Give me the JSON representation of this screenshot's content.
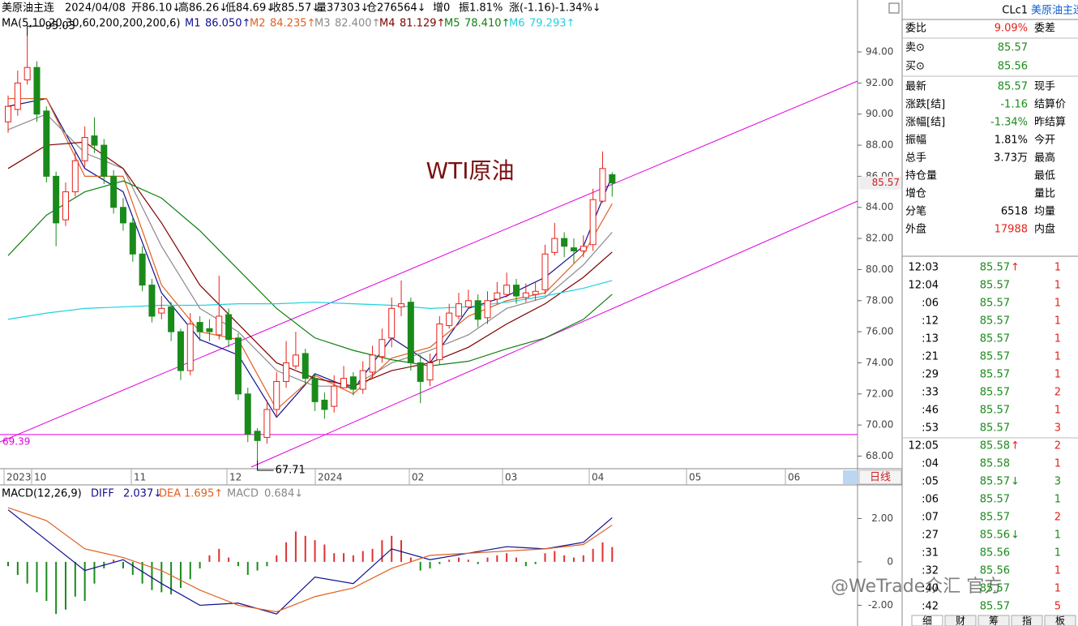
{
  "header": {
    "info": [
      "美原油主连",
      "2024/04/08",
      "开86.10↓",
      "高86.26↓",
      "低84.69↓",
      "收85.57↓",
      "量37303↓",
      "仓276564↓",
      "增0",
      "振1.81%",
      "涨(-1.16)-1.34%↓"
    ],
    "ma_title": "MA(5,10,20,30,60,200,200,200,6)"
  },
  "chart_data": [
    {
      "type": "candlestick",
      "title": "WTI原油",
      "open": [
        89.5,
        90.3,
        92.2,
        93,
        90.2,
        86,
        83.2,
        85,
        87,
        88.6,
        88,
        86,
        84,
        83,
        81,
        79,
        77.2,
        77.6,
        76,
        73.5,
        76.6,
        76.2,
        75.8,
        77.1,
        75.6,
        72,
        69.6,
        69.2,
        71,
        72.8,
        73.8,
        74.6,
        73,
        71.6,
        71.2,
        72.4,
        73.1,
        72.3,
        73.4,
        74.4,
        75.6,
        77.6,
        77.9,
        74,
        72.9,
        74.2,
        76.4,
        77,
        77.6,
        78,
        76.9,
        78.1,
        78.4,
        79,
        78.2,
        78.4,
        78.7,
        81.1,
        82,
        81.4,
        81.2,
        81.6,
        84.4,
        86.1
      ],
      "high": [
        91.2,
        92.8,
        95.03,
        93.4,
        90.5,
        86.3,
        85.6,
        87.6,
        89.2,
        89.8,
        88.4,
        86.4,
        84.6,
        83.4,
        81.5,
        79.4,
        78.3,
        77.9,
        76.2,
        77.2,
        77,
        76.8,
        79.6,
        77.5,
        75.9,
        72.4,
        69.8,
        71.6,
        73.4,
        75.4,
        76,
        74.9,
        73.3,
        72.1,
        73.2,
        73.8,
        73.4,
        74.1,
        75.1,
        76.2,
        78.2,
        79.3,
        78.2,
        74.5,
        74.6,
        77,
        77.8,
        78.5,
        78.7,
        78.4,
        78.6,
        79.2,
        79.8,
        79.4,
        79.1,
        79.2,
        81.6,
        83,
        82.4,
        82,
        82.2,
        85.2,
        87.6,
        86.26
      ],
      "low": [
        88.8,
        89.9,
        91.9,
        89.5,
        85.6,
        81.5,
        82.8,
        84.7,
        86.6,
        87.5,
        85.5,
        83.6,
        82.5,
        80.5,
        78.6,
        76.6,
        76.8,
        75.4,
        72.9,
        73.2,
        75.4,
        75.4,
        75.5,
        75,
        71.6,
        68.9,
        67.71,
        68.8,
        70.6,
        72.4,
        73.6,
        72.6,
        70.9,
        70.4,
        70.8,
        72.4,
        71.9,
        72,
        73,
        74,
        75,
        77,
        73.5,
        71.4,
        72.5,
        73.9,
        76.2,
        76.8,
        77.5,
        76.3,
        76.5,
        77.8,
        78.2,
        77.8,
        77.9,
        78,
        78.4,
        80.9,
        80.8,
        80.4,
        80.8,
        81.2,
        84.3,
        84.69
      ],
      "close": [
        90.5,
        92,
        93,
        90,
        86,
        83,
        85,
        87,
        88.5,
        88,
        86,
        84,
        83,
        81,
        79,
        77,
        77.5,
        76,
        73.5,
        76.5,
        76,
        76,
        77,
        75.5,
        72,
        69.4,
        69,
        71,
        72.8,
        74,
        74.5,
        73,
        71.5,
        71,
        72.5,
        73,
        72.3,
        73.5,
        74.5,
        75.5,
        77.5,
        77.8,
        74,
        72.8,
        74,
        76.5,
        77.2,
        77.8,
        78,
        76.8,
        78,
        78.5,
        79,
        78.3,
        78.5,
        78.6,
        81,
        82,
        81.5,
        81.2,
        81.5,
        84.5,
        86.5,
        85.57
      ],
      "color_up": "#e8201a",
      "color_down": "#1a8a1a",
      "x_labels": [
        "2023",
        "10",
        "11",
        "12",
        "2024",
        "02",
        "03",
        "04",
        "05",
        "06"
      ],
      "ylim": [
        67.19,
        97.34
      ],
      "yticks": [
        {
          "value": 68,
          "label": "68.00"
        },
        {
          "value": 70,
          "label": "70.00"
        },
        {
          "value": 72,
          "label": "72.00"
        },
        {
          "value": 74,
          "label": "74.00"
        },
        {
          "value": 76,
          "label": "76.00"
        },
        {
          "value": 78,
          "label": "78.00"
        },
        {
          "value": 80,
          "label": "80.00"
        },
        {
          "value": 82,
          "label": "82.00"
        },
        {
          "value": 84,
          "label": "84.00"
        },
        {
          "value": 86,
          "label": "86.00"
        },
        {
          "value": 88,
          "label": "88.00"
        },
        {
          "value": 90,
          "label": "90.00"
        },
        {
          "value": 92,
          "label": "92.00"
        },
        {
          "value": 94,
          "label": "94.00"
        }
      ],
      "last_label": "85.57",
      "hline": {
        "value": 69.39,
        "label": "69.39",
        "color": "#e000e0"
      },
      "annotations": [
        {
          "value": 95.03,
          "label": "95.03"
        },
        {
          "value": 67.71,
          "label": "67.71"
        }
      ],
      "series": [
        {
          "name": "M1",
          "value_label": "86.050↑",
          "color": "#101090",
          "x": [
            0,
            4,
            8,
            12,
            16,
            20,
            24,
            28,
            32,
            36,
            40,
            44,
            48,
            52,
            56,
            60,
            63
          ],
          "values": [
            90.5,
            91,
            86.5,
            85,
            78.5,
            75.5,
            74.5,
            70.5,
            73.3,
            72.3,
            75.6,
            74,
            77.5,
            78.3,
            79.5,
            81.5,
            86.05
          ]
        },
        {
          "name": "M2",
          "value_label": "84.235↑",
          "color": "#e06020",
          "x": [
            0,
            4,
            8,
            12,
            16,
            20,
            24,
            28,
            32,
            36,
            40,
            44,
            48,
            52,
            56,
            60,
            63
          ],
          "values": [
            91,
            91,
            86,
            86,
            79,
            76,
            75.5,
            71,
            73.2,
            72,
            74.3,
            75,
            77,
            78,
            78.5,
            81,
            84.235
          ]
        },
        {
          "name": "M3",
          "value_label": "82.400↑",
          "color": "#8a8a8a",
          "x": [
            0,
            4,
            8,
            12,
            16,
            20,
            24,
            28,
            32,
            36,
            40,
            44,
            48,
            52,
            56,
            60,
            63
          ],
          "values": [
            89,
            90,
            87.5,
            86.5,
            81.5,
            77.5,
            76,
            73.5,
            72.5,
            72.5,
            74,
            74.8,
            75.8,
            77.5,
            78.2,
            80.3,
            82.4
          ]
        },
        {
          "name": "M4",
          "value_label": "81.129↑",
          "color": "#800000",
          "x": [
            0,
            4,
            8,
            12,
            16,
            20,
            24,
            28,
            32,
            36,
            40,
            44,
            48,
            52,
            56,
            60,
            63
          ],
          "values": [
            86.5,
            88,
            88.2,
            86.5,
            83,
            79,
            76.5,
            74,
            73,
            72.5,
            73.5,
            74,
            75,
            76.5,
            77.8,
            79.5,
            81.129
          ]
        },
        {
          "name": "M5",
          "value_label": "78.410↑",
          "color": "#108010",
          "x": [
            0,
            4,
            8,
            12,
            16,
            20,
            24,
            28,
            32,
            36,
            40,
            44,
            48,
            52,
            56,
            60,
            63
          ],
          "values": [
            80.9,
            83.5,
            85,
            85.7,
            84.6,
            82.5,
            80,
            77.5,
            75.6,
            74.8,
            74.2,
            73.8,
            74.1,
            74.9,
            75.6,
            76.8,
            78.41
          ]
        },
        {
          "name": "M6",
          "value_label": "79.293↑",
          "color": "#20d0e0",
          "x": [
            0,
            4,
            8,
            12,
            16,
            20,
            24,
            28,
            32,
            36,
            40,
            44,
            48,
            52,
            56,
            60,
            63
          ],
          "values": [
            76.8,
            77.2,
            77.5,
            77.6,
            77.7,
            77.7,
            77.8,
            77.8,
            77.9,
            77.8,
            77.7,
            77.5,
            77.6,
            77.9,
            78.3,
            78.8,
            79.293
          ]
        }
      ]
    },
    {
      "type": "macd",
      "title": "MACD(12,26,9)",
      "ylim": [
        -2.88,
        3.36
      ],
      "yticks": [
        {
          "value": -2,
          "label": "-2.00"
        },
        0,
        {
          "value": 2,
          "label": "2.00"
        }
      ],
      "series": [
        {
          "name": "DIFF",
          "value_label": "2.037↓",
          "color": "#101090",
          "x": [
            0,
            4,
            8,
            12,
            16,
            20,
            24,
            28,
            32,
            36,
            40,
            44,
            48,
            52,
            56,
            60,
            63
          ],
          "values": [
            2.4,
            1,
            -0.4,
            0.1,
            -1,
            -2,
            -1.9,
            -2.4,
            -0.7,
            -1,
            0.6,
            0.1,
            0.4,
            0.7,
            0.6,
            0.9,
            2.037
          ]
        },
        {
          "name": "DEA",
          "value_label": "1.695↑",
          "color": "#e06020",
          "x": [
            0,
            4,
            8,
            12,
            16,
            20,
            24,
            28,
            32,
            36,
            40,
            44,
            48,
            52,
            56,
            60,
            63
          ],
          "values": [
            2.5,
            1.9,
            0.6,
            0.2,
            -0.4,
            -1.3,
            -2,
            -2.3,
            -1.6,
            -1.2,
            -0.3,
            0.3,
            0.4,
            0.5,
            0.6,
            0.8,
            1.695
          ]
        }
      ],
      "bars": {
        "name": "MACD",
        "value_label": "0.684↓",
        "color_up": "#e03030",
        "color_down": "#1a8a1a",
        "values": [
          -0.2,
          -0.6,
          -1,
          -1.4,
          -1.8,
          -2.4,
          -2.2,
          -1.6,
          -1.8,
          -1,
          -0.3,
          0.1,
          -0.3,
          -0.6,
          -1,
          -1.3,
          -1.4,
          -1.5,
          -1.2,
          -0.8,
          -0.3,
          0.3,
          0.6,
          0.2,
          -0.2,
          -0.6,
          -0.4,
          -0.2,
          0.3,
          0.9,
          1.4,
          1.2,
          1,
          0.8,
          0.4,
          0.4,
          0.3,
          0.5,
          0.6,
          1,
          1.2,
          1,
          0.2,
          -0.4,
          -0.3,
          -0.1,
          0.1,
          0.2,
          0.1,
          -0.1,
          0.2,
          0.3,
          0.4,
          0.2,
          -0.2,
          -0.1,
          0.4,
          0.5,
          0.3,
          0.2,
          0.3,
          0.6,
          0.9,
          0.684
        ]
      }
    }
  ],
  "period": "日线",
  "quote": {
    "code": "CLc1",
    "name": "美原油主连",
    "rows": [
      {
        "label": "委比",
        "value": "9.09%",
        "right": "委差",
        "color": "#e8201a"
      },
      {
        "label": "卖⊙",
        "value": "85.57",
        "right": "",
        "color": "#1a8a1a"
      },
      {
        "label": "买⊙",
        "value": "85.56",
        "right": "",
        "color": "#1a8a1a"
      },
      {
        "label": "最新",
        "value": "85.57",
        "right": "现手",
        "color": "#1a8a1a"
      },
      {
        "label": "涨跌[结]",
        "value": "-1.16",
        "right": "结算价",
        "color": "#1a8a1a"
      },
      {
        "label": "涨幅[结]",
        "value": "-1.34%",
        "right": "昨结算",
        "color": "#1a8a1a"
      },
      {
        "label": "振幅",
        "value": "1.81%",
        "right": "今开",
        "color": "#000000"
      },
      {
        "label": "总手",
        "value": "3.73万",
        "right": "最高",
        "color": "#000000"
      },
      {
        "label": "持仓量",
        "value": "",
        "right": "最低",
        "color": "#000000"
      },
      {
        "label": "增仓",
        "value": "",
        "right": "量比",
        "color": "#000000"
      },
      {
        "label": "分笔",
        "value": "6518",
        "right": "均量",
        "color": "#000000"
      },
      {
        "label": "外盘",
        "value": "17988",
        "right": "内盘",
        "color": "#e8201a"
      }
    ]
  },
  "trades": [
    {
      "time": "12:03",
      "price": "85.57",
      "dir": "↑",
      "vol": "1",
      "color": "#e8201a"
    },
    {
      "time": "12:04",
      "price": "85.57",
      "dir": "",
      "vol": "1",
      "color": "#e8201a"
    },
    {
      "time": ":06",
      "price": "85.57",
      "dir": "",
      "vol": "1",
      "color": "#e8201a"
    },
    {
      "time": ":12",
      "price": "85.57",
      "dir": "",
      "vol": "1",
      "color": "#e8201a"
    },
    {
      "time": ":13",
      "price": "85.57",
      "dir": "",
      "vol": "1",
      "color": "#e8201a"
    },
    {
      "time": ":21",
      "price": "85.57",
      "dir": "",
      "vol": "1",
      "color": "#e8201a"
    },
    {
      "time": ":29",
      "price": "85.57",
      "dir": "",
      "vol": "1",
      "color": "#e8201a"
    },
    {
      "time": ":33",
      "price": "85.57",
      "dir": "",
      "vol": "2",
      "color": "#e8201a"
    },
    {
      "time": ":46",
      "price": "85.57",
      "dir": "",
      "vol": "1",
      "color": "#e8201a"
    },
    {
      "time": ":53",
      "price": "85.57",
      "dir": "",
      "vol": "3",
      "color": "#e8201a"
    },
    {
      "time": "12:05",
      "price": "85.58",
      "dir": "↑",
      "vol": "2",
      "color": "#e8201a"
    },
    {
      "time": ":04",
      "price": "85.58",
      "dir": "",
      "vol": "1",
      "color": "#e8201a"
    },
    {
      "time": ":05",
      "price": "85.57",
      "dir": "↓",
      "vol": "3",
      "color": "#1a8a1a"
    },
    {
      "time": ":06",
      "price": "85.57",
      "dir": "",
      "vol": "1",
      "color": "#1a8a1a"
    },
    {
      "time": ":07",
      "price": "85.57",
      "dir": "",
      "vol": "2",
      "color": "#e8201a"
    },
    {
      "time": ":27",
      "price": "85.56",
      "dir": "↓",
      "vol": "1",
      "color": "#1a8a1a"
    },
    {
      "time": ":31",
      "price": "85.56",
      "dir": "",
      "vol": "1",
      "color": "#1a8a1a"
    },
    {
      "time": ":32",
      "price": "85.56",
      "dir": "",
      "vol": "1",
      "color": "#e8201a"
    },
    {
      "time": ":40",
      "price": "85.57",
      "dir": "",
      "vol": "1",
      "color": "#e8201a"
    },
    {
      "time": ":42",
      "price": "85.57",
      "dir": "",
      "vol": "5",
      "color": "#e8201a"
    }
  ],
  "tabs": [
    "细",
    "财",
    "筹",
    "指",
    "板"
  ],
  "watermark": "@WeTrade众汇 官方"
}
